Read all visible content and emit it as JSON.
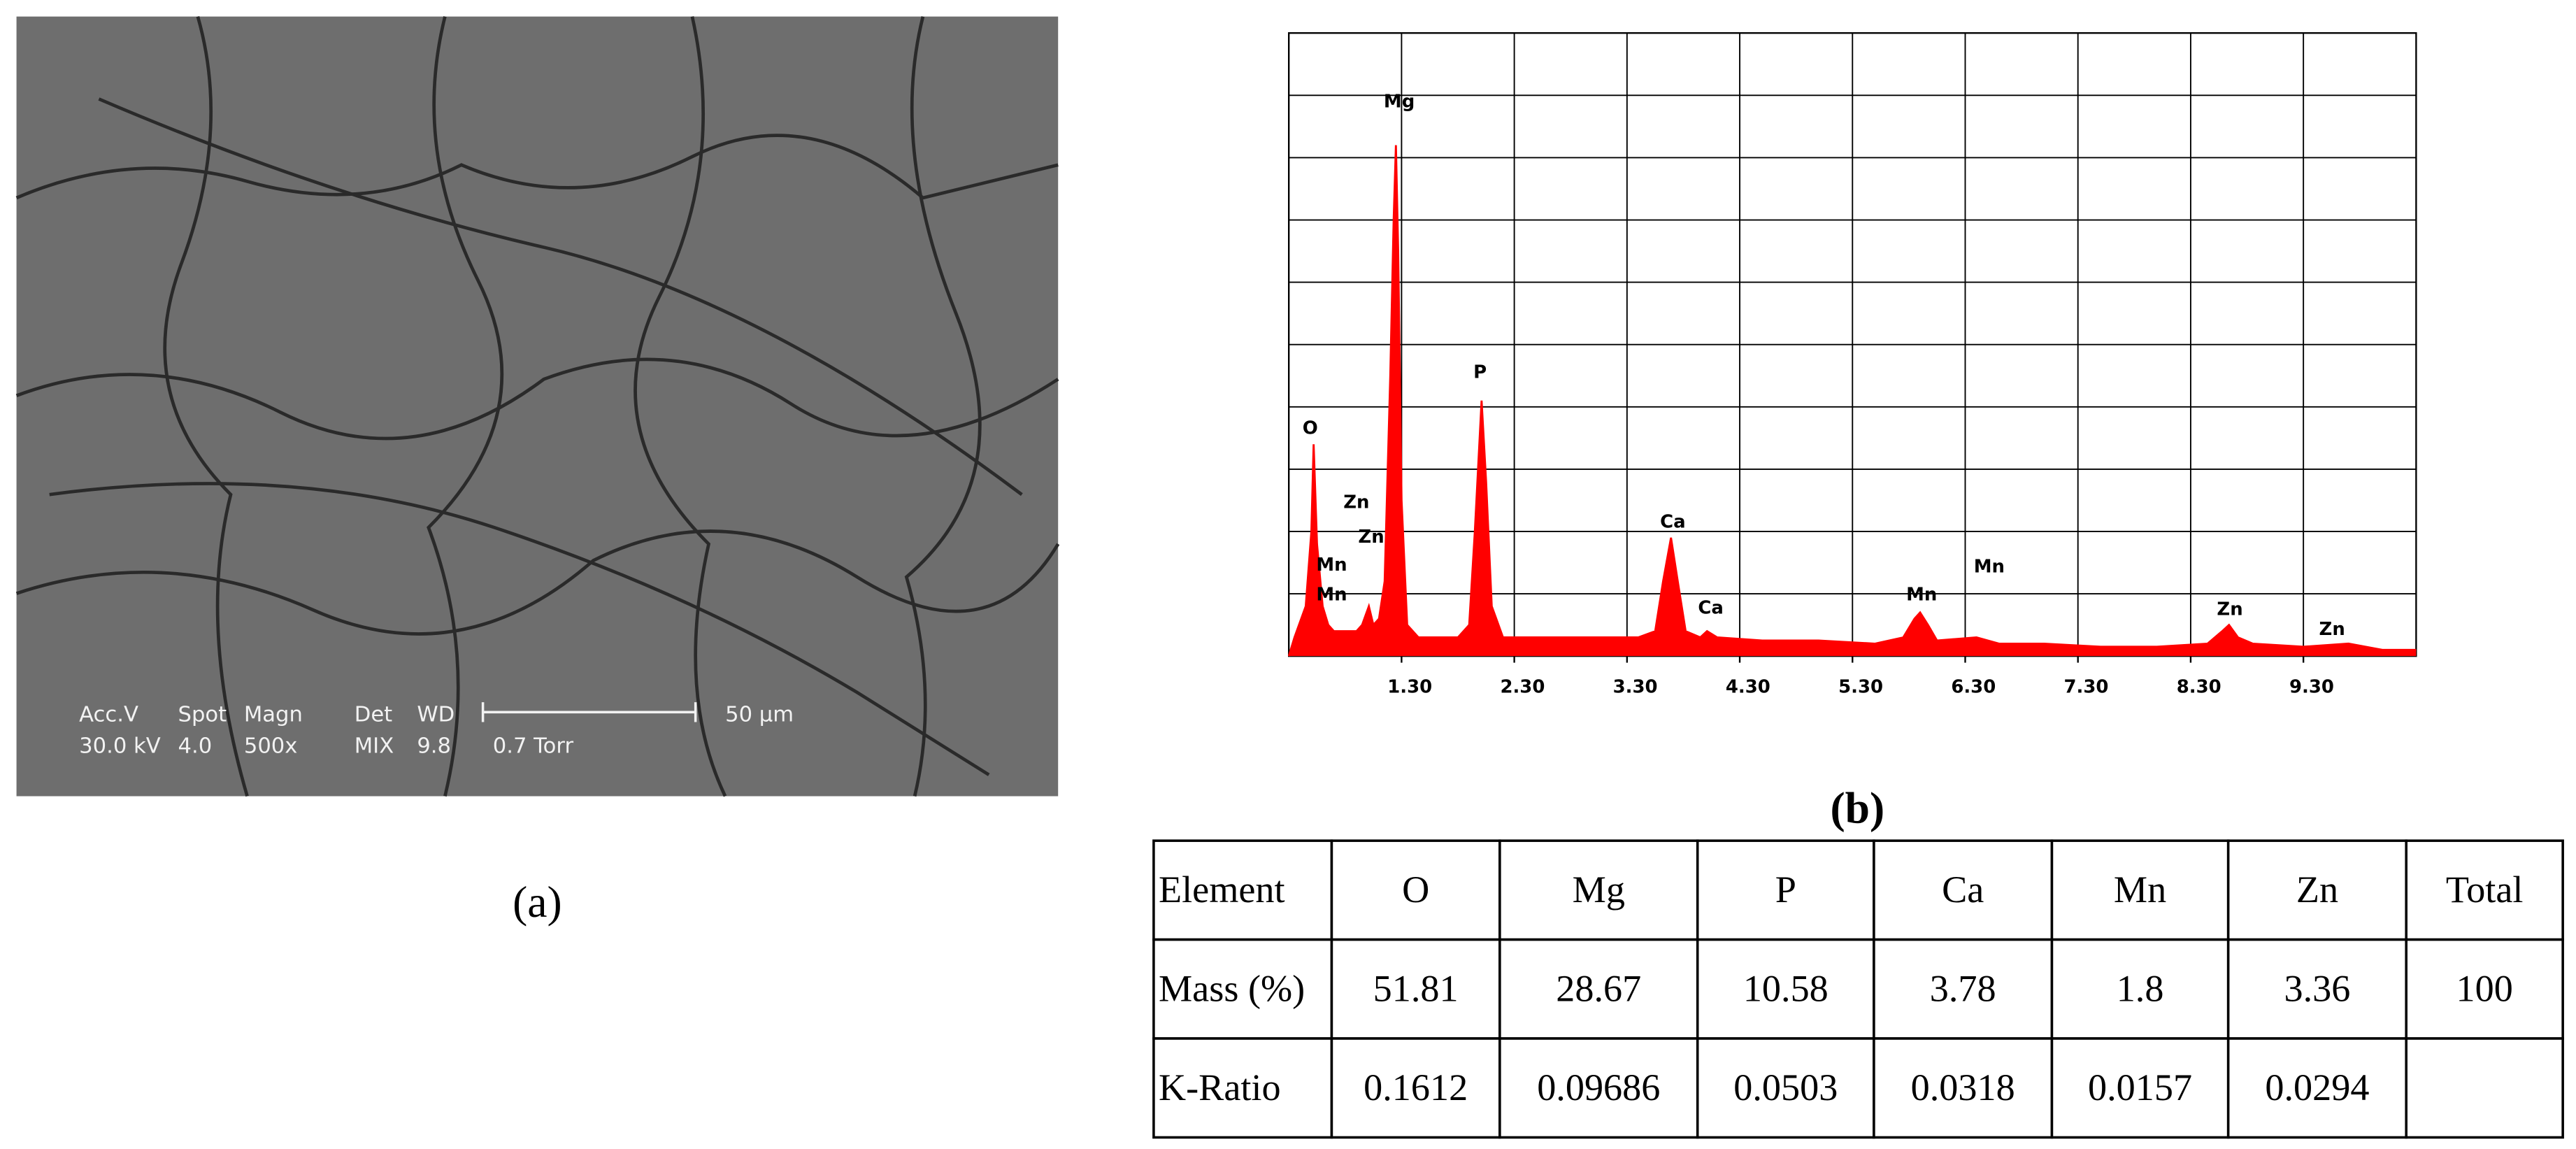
{
  "sem_image": {
    "row1": [
      "Acc.V",
      "Spot",
      "Magn",
      "Det",
      "WD",
      "50 µm"
    ],
    "row2": [
      "30.0 kV",
      "4.0",
      "500x",
      "MIX",
      "9.8",
      "0.7 Torr"
    ]
  },
  "caption_a": "(a)",
  "caption_b": "(b)",
  "chart_data": {
    "type": "area",
    "color": "#ff0000",
    "x": [
      0.3,
      0.35,
      0.45,
      0.5,
      0.52,
      0.55,
      0.6,
      0.65,
      0.7,
      0.8,
      0.9,
      0.95,
      1.01,
      1.05,
      1.1,
      1.15,
      1.2,
      1.23,
      1.25,
      1.27,
      1.3,
      1.35,
      1.45,
      1.6,
      1.8,
      1.9,
      1.95,
      2.01,
      2.05,
      2.1,
      2.2,
      2.5,
      2.8,
      3.1,
      3.4,
      3.55,
      3.62,
      3.69,
      3.75,
      3.82,
      3.95,
      4.01,
      4.1,
      4.5,
      5.0,
      5.5,
      5.75,
      5.85,
      5.9,
      5.97,
      6.05,
      6.4,
      6.6,
      7.0,
      7.5,
      8.0,
      8.45,
      8.58,
      8.64,
      8.72,
      8.85,
      9.3,
      9.7,
      10.0,
      10.3
    ],
    "values": [
      0,
      3,
      8,
      20,
      34,
      18,
      8,
      5,
      4,
      4,
      4,
      5,
      8,
      5,
      6,
      12,
      45,
      70,
      82,
      65,
      25,
      5,
      3,
      3,
      3,
      5,
      20,
      41,
      28,
      8,
      3,
      3,
      3,
      3,
      3,
      4,
      12,
      19,
      12,
      4,
      3,
      4,
      3,
      2.5,
      2.5,
      2,
      3,
      6,
      7,
      5,
      2.5,
      3,
      2,
      2,
      1.5,
      1.5,
      2,
      4,
      5,
      3,
      2,
      1.5,
      2,
      1,
      1
    ],
    "xlim": [
      0.3,
      10.3
    ],
    "ylim": [
      0,
      100
    ],
    "xticks": [
      {
        "value": 1.3,
        "label": "1.30"
      },
      {
        "value": 2.3,
        "label": "2.30"
      },
      {
        "value": 3.3,
        "label": "3.30"
      },
      {
        "value": 4.3,
        "label": "4.30"
      },
      {
        "value": 5.3,
        "label": "5.30"
      },
      {
        "value": 6.3,
        "label": "6.30"
      },
      {
        "value": 7.3,
        "label": "7.30"
      },
      {
        "value": 8.3,
        "label": "8.30"
      },
      {
        "value": 9.3,
        "label": "9.30"
      }
    ],
    "grid": true,
    "annotations": [
      "Mg",
      "O",
      "P",
      "Zn",
      "Zn",
      "Mn",
      "Mn",
      "Ca",
      "Ca",
      "Mn",
      "Mn",
      "Zn",
      "Zn"
    ]
  },
  "table": {
    "header": [
      "Element",
      "O",
      "Mg",
      "P",
      "Ca",
      "Mn",
      "Zn",
      "Total"
    ],
    "rows": [
      [
        "Mass (%)",
        51.81,
        28.67,
        10.58,
        3.78,
        1.8,
        3.36,
        100
      ],
      [
        "K-Ratio",
        0.1612,
        0.09686,
        0.0503,
        0.0318,
        0.0157,
        0.0294
      ]
    ]
  }
}
